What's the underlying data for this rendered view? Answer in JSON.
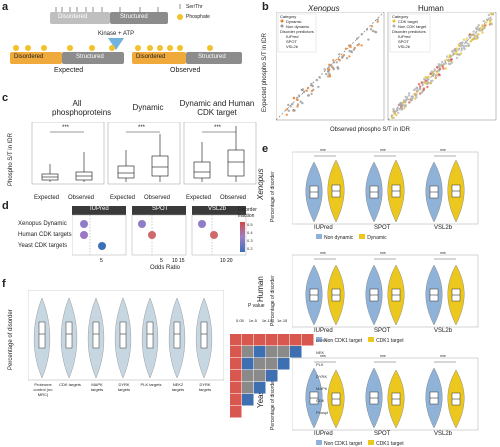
{
  "panels": {
    "a": {
      "letter": "a",
      "top_track": {
        "left": "Disordered",
        "right": "Structured"
      },
      "legend": [
        "Ser/Thr",
        "Phosphate"
      ],
      "kinase": "Kinase + ATP",
      "bottom_left": {
        "left": "Disordered",
        "right": "Structured"
      },
      "bottom_right": {
        "left": "Disordered",
        "right": "Structured"
      },
      "expected_label": "Expected",
      "observed_label": "Observed"
    },
    "b": {
      "letter": "b",
      "titles": [
        "Xenopus",
        "Human"
      ],
      "ylabel": "Expected phospho S/T in IDR",
      "xlabel": "Observed phospho S/T in IDR",
      "legend_xenopus": {
        "title": "Category",
        "items": [
          "Dynamic",
          "Non dynamic"
        ],
        "sub_title": "Disorder predictors",
        "subs": [
          "IUPred",
          "SPOT",
          "VSL2b"
        ]
      },
      "legend_human": {
        "title": "Category",
        "items": [
          "CDK target",
          "Non CDK target"
        ],
        "sub_title": "Disorder predictors",
        "subs": [
          "IUPred",
          "SPOT",
          "VSL2b"
        ]
      },
      "colors": {
        "dynamic": "#e87f2a",
        "nondyn": "#9a9a9a",
        "cdk": "#e8c12a",
        "noncdk": "#b0b0b0"
      }
    },
    "c": {
      "letter": "c",
      "titles": [
        "All phosphoproteins",
        "Dynamic",
        "Dynamic and Human CDK target"
      ],
      "ylabel": "Phospho S/T in IDR",
      "xticks": [
        "Expected",
        "Observed"
      ],
      "sig": "***"
    },
    "d": {
      "letter": "d",
      "titles": [
        "IUPred",
        "SPOT",
        "VSL2b"
      ],
      "rows": [
        "Xenopus Dynamic",
        "Human CDK targets",
        "Yeast CDK targets"
      ],
      "xlabel": "Odds Ratio",
      "legend_title": "Disorder fraction",
      "legend_ticks": [
        "0.5",
        "0.4",
        "0.3",
        "0.2"
      ]
    },
    "e": {
      "letter": "e",
      "species": [
        "Xenopus",
        "Human",
        "Yeast"
      ],
      "ylabel": "Percentage of disorder",
      "xticks": [
        "IUPred",
        "SPOT",
        "VSL2b"
      ],
      "sig": "***",
      "legends": [
        [
          "Non dynamic",
          "Dynamic"
        ],
        [
          "Non CDK1 target",
          "CDK1 target"
        ],
        [
          "Non CDK1 target",
          "CDK1 target"
        ]
      ],
      "colors": {
        "blue": "#8fb2d8",
        "yellow": "#ecc81f"
      }
    },
    "f": {
      "letter": "f",
      "ylabel": "Percentage of disorder",
      "violins": [
        "Proteome control (no MRC)",
        "CDK targets",
        "MAPK targets",
        "DYRK targets",
        "PLK targets",
        "NEK2 targets",
        "DYRK targets"
      ],
      "heatmap_title": "P value",
      "heatmap_scale": [
        "0.05",
        "1e-5",
        "1e-10",
        "1e-15"
      ],
      "heatmap_rows": [
        "DYRK",
        "NEK",
        "PLK",
        "DYRK",
        "MAPK",
        "CDK",
        "Phospho proteome"
      ],
      "heatmap_cols": [
        "Phospho proteome",
        "CDK",
        "MAPK",
        "DYRK",
        "PLK",
        "NEK",
        "DYRK"
      ]
    }
  }
}
